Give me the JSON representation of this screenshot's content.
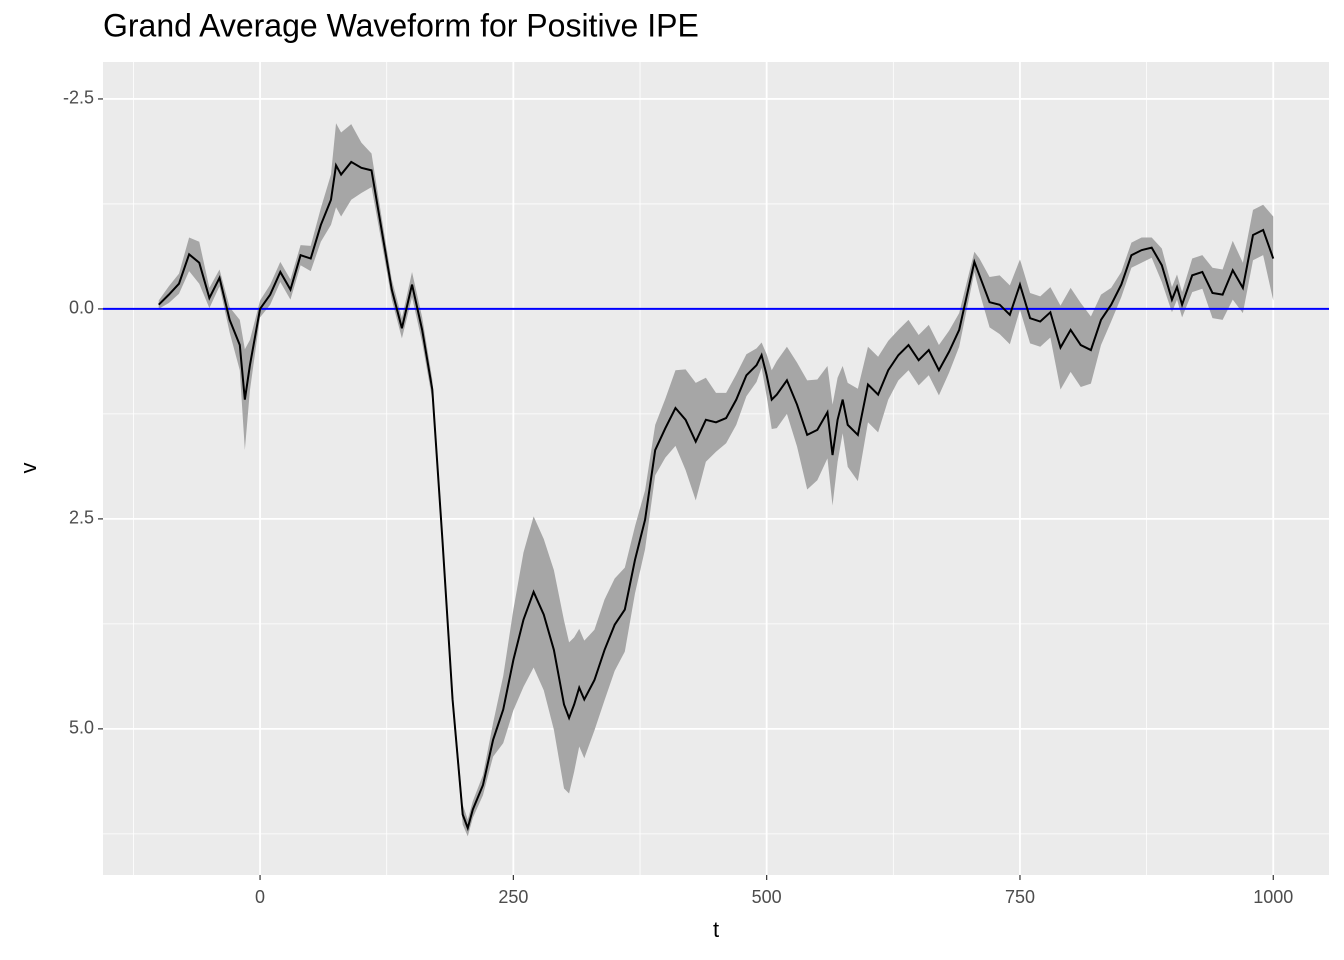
{
  "chart_data": {
    "type": "line",
    "title": "Grand Average Waveform for Positive IPE",
    "x_label": "t",
    "y_label": "v",
    "x": [
      -100,
      -90,
      -80,
      -70,
      -60,
      -50,
      -40,
      -30,
      -20,
      -15,
      -10,
      0,
      10,
      20,
      30,
      40,
      50,
      60,
      70,
      75,
      80,
      90,
      100,
      110,
      120,
      130,
      140,
      150,
      160,
      170,
      180,
      190,
      200,
      205,
      210,
      220,
      230,
      240,
      250,
      260,
      270,
      280,
      290,
      300,
      305,
      310,
      315,
      320,
      330,
      340,
      350,
      360,
      370,
      380,
      390,
      400,
      410,
      420,
      430,
      440,
      450,
      460,
      470,
      480,
      490,
      495,
      500,
      505,
      510,
      520,
      530,
      540,
      550,
      560,
      565,
      570,
      575,
      580,
      590,
      600,
      610,
      620,
      630,
      640,
      650,
      660,
      670,
      680,
      690,
      700,
      705,
      710,
      720,
      730,
      740,
      750,
      760,
      770,
      780,
      790,
      800,
      810,
      820,
      830,
      840,
      850,
      860,
      870,
      880,
      890,
      900,
      905,
      910,
      920,
      930,
      940,
      950,
      960,
      970,
      980,
      990,
      1000
    ],
    "series": [
      {
        "color": "#000000",
        "values": [
          -0.05,
          -0.17,
          -0.3,
          -0.65,
          -0.55,
          -0.13,
          -0.37,
          0.13,
          0.43,
          1.08,
          0.67,
          0.0,
          -0.17,
          -0.44,
          -0.23,
          -0.64,
          -0.6,
          -1.0,
          -1.3,
          -1.71,
          -1.6,
          -1.75,
          -1.68,
          -1.65,
          -0.94,
          -0.23,
          0.23,
          -0.29,
          0.25,
          0.96,
          2.75,
          4.65,
          6.02,
          6.18,
          5.96,
          5.67,
          5.13,
          4.77,
          4.18,
          3.7,
          3.37,
          3.64,
          4.06,
          4.71,
          4.87,
          4.71,
          4.51,
          4.65,
          4.42,
          4.06,
          3.76,
          3.58,
          2.99,
          2.51,
          1.68,
          1.42,
          1.18,
          1.32,
          1.58,
          1.32,
          1.35,
          1.3,
          1.08,
          0.79,
          0.67,
          0.55,
          0.79,
          1.08,
          1.02,
          0.85,
          1.14,
          1.5,
          1.44,
          1.23,
          1.74,
          1.32,
          1.08,
          1.38,
          1.5,
          0.9,
          1.02,
          0.73,
          0.55,
          0.43,
          0.61,
          0.49,
          0.73,
          0.51,
          0.25,
          -0.29,
          -0.56,
          -0.4,
          -0.08,
          -0.05,
          0.07,
          -0.29,
          0.11,
          0.15,
          0.04,
          0.46,
          0.25,
          0.43,
          0.49,
          0.13,
          -0.05,
          -0.29,
          -0.64,
          -0.7,
          -0.73,
          -0.52,
          -0.11,
          -0.26,
          -0.05,
          -0.4,
          -0.44,
          -0.19,
          -0.17,
          -0.46,
          -0.25,
          -0.88,
          -0.94,
          -0.6
        ]
      }
    ],
    "ribbon": {
      "color": "#a6a6a6",
      "lower": [
        -0.1,
        -0.27,
        -0.42,
        -0.85,
        -0.8,
        -0.25,
        -0.47,
        -0.02,
        0.13,
        0.48,
        0.37,
        -0.1,
        -0.29,
        -0.56,
        -0.35,
        -0.76,
        -0.75,
        -1.2,
        -1.6,
        -2.21,
        -2.1,
        -2.2,
        -1.98,
        -1.85,
        -1.09,
        -0.35,
        0.11,
        -0.44,
        0.1,
        0.84,
        2.65,
        4.55,
        5.9,
        6.08,
        5.86,
        5.55,
        4.93,
        4.37,
        3.58,
        2.9,
        2.47,
        2.74,
        3.11,
        3.71,
        3.97,
        3.91,
        3.81,
        3.95,
        3.82,
        3.46,
        3.21,
        3.08,
        2.59,
        2.16,
        1.38,
        1.07,
        0.73,
        0.72,
        0.88,
        0.82,
        1.0,
        1.0,
        0.78,
        0.54,
        0.47,
        0.4,
        0.54,
        0.73,
        0.62,
        0.45,
        0.64,
        0.85,
        0.84,
        0.68,
        1.14,
        0.82,
        0.68,
        0.88,
        0.95,
        0.45,
        0.57,
        0.38,
        0.25,
        0.13,
        0.31,
        0.19,
        0.43,
        0.26,
        0.05,
        -0.44,
        -0.68,
        -0.6,
        -0.38,
        -0.4,
        -0.28,
        -0.59,
        -0.19,
        -0.15,
        -0.26,
        -0.04,
        -0.25,
        -0.07,
        0.09,
        -0.17,
        -0.25,
        -0.44,
        -0.79,
        -0.85,
        -0.85,
        -0.72,
        -0.26,
        -0.41,
        -0.2,
        -0.6,
        -0.64,
        -0.49,
        -0.47,
        -0.81,
        -0.55,
        -1.18,
        -1.24,
        -1.1
      ],
      "upper": [
        0,
        -0.07,
        -0.18,
        -0.45,
        -0.3,
        -0.01,
        -0.27,
        0.28,
        0.73,
        1.68,
        0.97,
        0.1,
        -0.05,
        -0.32,
        -0.11,
        -0.52,
        -0.45,
        -0.8,
        -1.0,
        -1.21,
        -1.1,
        -1.3,
        -1.38,
        -1.45,
        -0.79,
        -0.11,
        0.35,
        -0.14,
        0.4,
        1.08,
        2.85,
        4.75,
        6.14,
        6.28,
        6.06,
        5.79,
        5.33,
        5.17,
        4.78,
        4.5,
        4.27,
        4.54,
        5.01,
        5.71,
        5.77,
        5.51,
        5.21,
        5.35,
        5.02,
        4.66,
        4.31,
        4.08,
        3.39,
        2.86,
        1.98,
        1.77,
        1.63,
        1.92,
        2.28,
        1.82,
        1.7,
        1.6,
        1.38,
        1.04,
        0.87,
        0.7,
        1.04,
        1.43,
        1.42,
        1.25,
        1.64,
        2.15,
        2.04,
        1.78,
        2.34,
        1.82,
        1.48,
        1.88,
        2.05,
        1.35,
        1.47,
        1.08,
        0.85,
        0.73,
        0.91,
        0.79,
        1.03,
        0.76,
        0.45,
        -0.14,
        -0.44,
        -0.2,
        0.22,
        0.3,
        0.42,
        0.01,
        0.41,
        0.45,
        0.34,
        0.96,
        0.75,
        0.93,
        0.89,
        0.43,
        0.15,
        -0.14,
        -0.49,
        -0.55,
        -0.61,
        -0.32,
        0.04,
        -0.11,
        0.1,
        -0.2,
        -0.24,
        0.11,
        0.13,
        -0.11,
        0.05,
        -0.58,
        -0.64,
        -0.1
      ]
    },
    "hline": {
      "value": 0,
      "color": "#0000ff"
    },
    "xlim": [
      -155,
      1055
    ],
    "xticks": [
      0,
      250,
      500,
      750,
      1000
    ],
    "ylim": [
      -2.94,
      6.74
    ],
    "y_reverse": true,
    "yticks": [
      -2.5,
      {
        "value": 0,
        "label": "0.0"
      },
      2.5,
      {
        "value": 5,
        "label": "5.0"
      }
    ],
    "grid": true
  }
}
